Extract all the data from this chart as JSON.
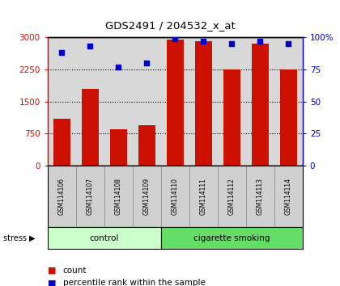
{
  "title": "GDS2491 / 204532_x_at",
  "samples": [
    "GSM114106",
    "GSM114107",
    "GSM114108",
    "GSM114109",
    "GSM114110",
    "GSM114111",
    "GSM114112",
    "GSM114113",
    "GSM114114"
  ],
  "counts": [
    1100,
    1800,
    850,
    950,
    2950,
    2900,
    2250,
    2850,
    2250
  ],
  "percentiles": [
    88,
    93,
    77,
    80,
    99,
    97,
    95,
    97,
    95
  ],
  "ylim_left": [
    0,
    3000
  ],
  "ylim_right": [
    0,
    100
  ],
  "yticks_left": [
    0,
    750,
    1500,
    2250,
    3000
  ],
  "ytick_labels_left": [
    "0",
    "750",
    "1500",
    "2250",
    "3000"
  ],
  "yticks_right": [
    0,
    25,
    50,
    75,
    100
  ],
  "ytick_labels_right": [
    "0",
    "25",
    "50",
    "75",
    "100%"
  ],
  "bar_color": "#cc1100",
  "dot_color": "#0000cc",
  "groups": [
    {
      "label": "control",
      "start": 0,
      "end": 3,
      "color": "#ccffcc"
    },
    {
      "label": "cigarette smoking",
      "start": 4,
      "end": 8,
      "color": "#66dd66"
    }
  ],
  "group_label": "stress",
  "plot_bg_color": "#d8d8d8",
  "label_bg_color": "#d0d0d0",
  "bar_width": 0.6,
  "fig_width": 4.2,
  "fig_height": 3.54,
  "dpi": 100
}
